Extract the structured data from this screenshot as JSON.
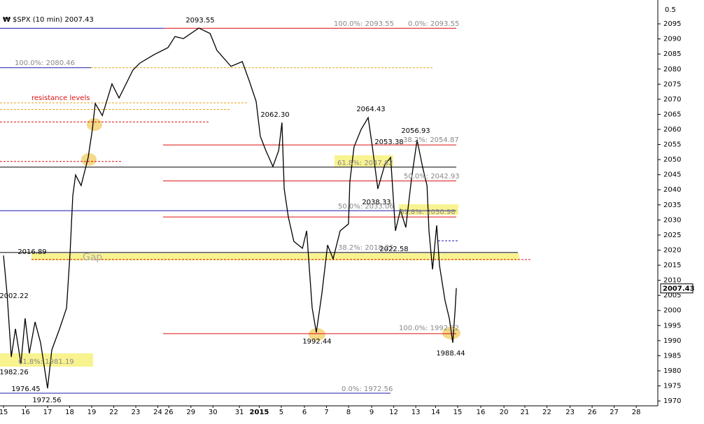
{
  "chart_data": {
    "type": "line",
    "title": "$SPX (10 min) 2007.43",
    "scale_note": "0.5",
    "last_price": 2007.43,
    "xlim": [
      -0.16,
      29.68
    ],
    "ylim": [
      1968.4,
      2102.9
    ],
    "xticks": [
      {
        "value": 0,
        "label": "15"
      },
      {
        "value": 1,
        "label": "16"
      },
      {
        "value": 2,
        "label": "17"
      },
      {
        "value": 3,
        "label": "18"
      },
      {
        "value": 4,
        "label": "19"
      },
      {
        "value": 5,
        "label": "22"
      },
      {
        "value": 6,
        "label": "23"
      },
      {
        "value": 7,
        "label": "24"
      },
      {
        "value": 7.5,
        "label": "26"
      },
      {
        "value": 8.5,
        "label": "29"
      },
      {
        "value": 9.5,
        "label": "30"
      },
      {
        "value": 10.7,
        "label": "31"
      },
      {
        "value": 11.6,
        "label": "2015"
      },
      {
        "value": 12.6,
        "label": "5"
      },
      {
        "value": 13.65,
        "label": "6"
      },
      {
        "value": 14.65,
        "label": "7"
      },
      {
        "value": 15.65,
        "label": "8"
      },
      {
        "value": 16.7,
        "label": "9"
      },
      {
        "value": 17.7,
        "label": "12"
      },
      {
        "value": 18.7,
        "label": "13"
      },
      {
        "value": 19.6,
        "label": "14"
      },
      {
        "value": 20.6,
        "label": "15"
      },
      {
        "value": 21.65,
        "label": "16"
      },
      {
        "value": 22.7,
        "label": "20"
      },
      {
        "value": 23.65,
        "label": "21"
      },
      {
        "value": 24.65,
        "label": "22"
      },
      {
        "value": 25.7,
        "label": "23"
      },
      {
        "value": 26.7,
        "label": "26"
      },
      {
        "value": 27.7,
        "label": "27"
      },
      {
        "value": 28.7,
        "label": "28"
      }
    ],
    "yticks": [
      1970,
      1975,
      1980,
      1985,
      1990,
      1995,
      2000,
      2005,
      2010,
      2015,
      2020,
      2025,
      2030,
      2035,
      2040,
      2045,
      2050,
      2055,
      2060,
      2065,
      2070,
      2075,
      2080,
      2085,
      2090,
      2095
    ],
    "series": [
      {
        "name": "$SPX",
        "color": "#000000",
        "x": [
          0,
          0.16,
          0.35,
          0.54,
          0.79,
          0.98,
          1.17,
          1.43,
          1.68,
          2.0,
          2.19,
          2.54,
          2.86,
          3.02,
          3.14,
          3.27,
          3.52,
          3.84,
          4.03,
          4.16,
          4.48,
          4.92,
          5.24,
          5.87,
          6.19,
          6.83,
          7.46,
          7.78,
          8.16,
          8.86,
          9.37,
          9.68,
          10.32,
          10.83,
          11.14,
          11.46,
          11.65,
          11.9,
          12.22,
          12.48,
          12.63,
          12.73,
          12.92,
          13.17,
          13.56,
          13.75,
          14.0,
          14.19,
          14.44,
          14.7,
          14.95,
          15.27,
          15.65,
          15.71,
          15.9,
          16.22,
          16.54,
          16.73,
          16.98,
          17.3,
          17.56,
          17.78,
          18.0,
          18.25,
          18.51,
          18.76,
          19.02,
          19.21,
          19.3,
          19.46,
          19.65,
          19.78,
          20.03,
          20.22,
          20.38,
          20.48,
          20.54
        ],
        "values": [
          2018.2,
          2005.5,
          1984.6,
          1993.9,
          1982.3,
          1997.4,
          1985.8,
          1996.2,
          1989.3,
          1974.2,
          1986.9,
          1993.9,
          2000.8,
          2019.4,
          2038.0,
          2044.9,
          2041.4,
          2050.7,
          2060.0,
          2068.6,
          2064.6,
          2075.1,
          2070.4,
          2079.7,
          2082.0,
          2084.8,
          2087.1,
          2090.8,
          2090.1,
          2093.6,
          2091.8,
          2086.2,
          2080.9,
          2082.5,
          2076.2,
          2069.3,
          2057.7,
          2053.0,
          2047.7,
          2053.0,
          2062.3,
          2040.3,
          2031.0,
          2022.9,
          2020.6,
          2026.4,
          2000.8,
          1992.7,
          2005.5,
          2021.7,
          2017.1,
          2026.4,
          2028.7,
          2042.6,
          2054.2,
          2060.0,
          2063.9,
          2054.2,
          2040.3,
          2048.4,
          2050.7,
          2026.4,
          2033.3,
          2027.5,
          2043.8,
          2056.5,
          2047.2,
          2041.4,
          2026.4,
          2013.6,
          2028.2,
          2014.8,
          2003.2,
          1997.4,
          1989.3,
          1999.7,
          2007.43
        ]
      }
    ],
    "levels": [
      {
        "value": 2093.55,
        "color": "#1a1aa8",
        "dashed": false
      },
      {
        "value": 2093.55,
        "color": "#d11",
        "dashed": false
      },
      {
        "value": 2080.46,
        "color": "#1a1aa8",
        "dashed": false
      },
      {
        "value": 2080.46,
        "color": "#e8a317",
        "dashed": true
      },
      {
        "value": 2068.8,
        "color": "#e8a317",
        "dashed": true
      },
      {
        "value": 2066.6,
        "color": "#e8a317",
        "dashed": true
      },
      {
        "value": 2062.5,
        "color": "#d11",
        "dashed": true
      },
      {
        "value": 2054.87,
        "color": "#d11",
        "dashed": false
      },
      {
        "value": 2049.4,
        "color": "#d11",
        "dashed": true
      },
      {
        "value": 2047.5,
        "color": "#000",
        "dashed": false
      },
      {
        "value": 2042.93,
        "color": "#d11",
        "dashed": false
      },
      {
        "value": 2033.06,
        "color": "#1a1aa8",
        "dashed": false
      },
      {
        "value": 2030.98,
        "color": "#d11",
        "dashed": false
      },
      {
        "value": 2023.1,
        "color": "#1a1aa8",
        "dashed": true
      },
      {
        "value": 2019.2,
        "color": "#000",
        "dashed": false
      },
      {
        "value": 2016.89,
        "color": "#d11",
        "dashed": true
      },
      {
        "value": 1992.32,
        "color": "#d11",
        "dashed": false
      },
      {
        "value": 1972.56,
        "color": "#1a1aa8",
        "dashed": false
      }
    ],
    "annotations": [
      "2093.55",
      "100.0%: 2093.55",
      "0.0%: 2093.55",
      "100.0%: 2080.46",
      "resistance levels",
      "2062.30",
      "2064.43",
      "2056.93",
      "2053.38",
      "38.2%: 2054.87",
      "61.8%: 2047.82",
      "50.0%: 2042.93",
      "50.0%: 2033.06",
      "2038.33",
      "61.8%: 2030.98",
      "2016.89",
      "Gap",
      "38.2%: 2018.25",
      "2022.58",
      "2002.22",
      "1982.26",
      "61.8%: 1981.19",
      "1976.45",
      "1972.56",
      "0.0%: 1972.56",
      "1992.44",
      "100.0%: 1992.32",
      "1988.44"
    ]
  }
}
